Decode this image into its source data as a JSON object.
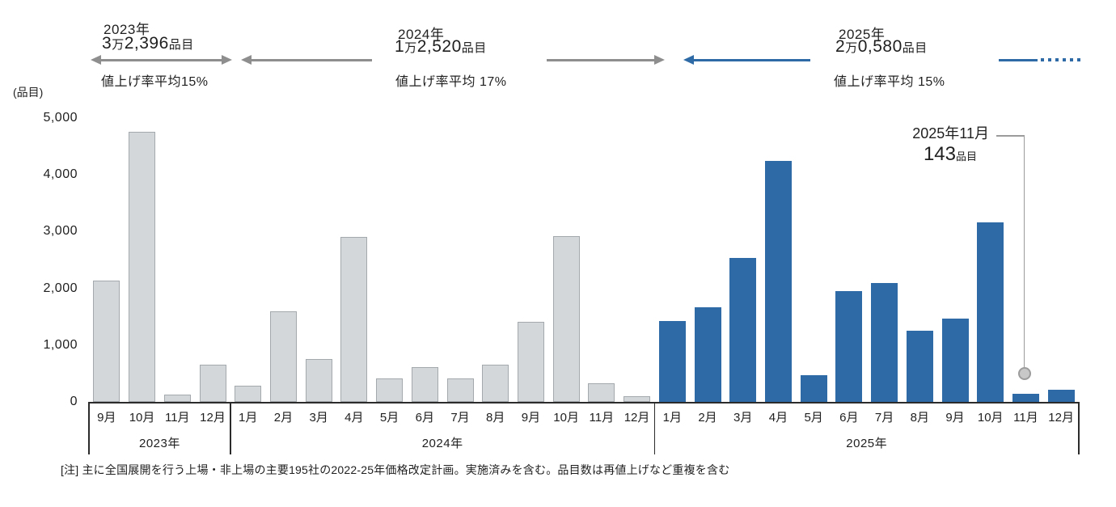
{
  "unit_label": "(品目)",
  "annotations": [
    {
      "year_label": "2023年",
      "num1": "3",
      "man": "万",
      "num2": "2,396",
      "unit": "品目",
      "rate": "値上げ率平均15%"
    },
    {
      "year_label": "2024年",
      "num1": "1",
      "man": "万",
      "num2": "2,520",
      "unit": "品目",
      "rate": "値上げ率平均 17%"
    },
    {
      "year_label": "2025年",
      "num1": "2",
      "man": "万",
      "num2": "0,580",
      "unit": "品目",
      "rate": "値上げ率平均 15%"
    }
  ],
  "callout": {
    "title": "2025年11月",
    "value": "143",
    "unit": "品目"
  },
  "note": "[注] 主に全国展開を行う上場・非上場の主要195社の2022-25年価格改定計画。実施済みを含む。品目数は再値上げなど重複を含む",
  "colors": {
    "gray_bar": "#d3d7da",
    "gray_bar_border": "#a4a9ad",
    "blue_bar": "#2e6ba6",
    "gray_arrow": "#8e8e8e",
    "blue_arrow": "#2e6ba6",
    "axis": "#2b2b2b",
    "callout_line": "#9b9b9b"
  },
  "chart_data": {
    "type": "bar",
    "title": "",
    "xlabel": "",
    "ylabel": "(品目)",
    "ylim": [
      0,
      5000
    ],
    "grid": false,
    "legend": "none",
    "yticks": [
      "5,000",
      "4,000",
      "3,000",
      "2,000",
      "1,000",
      "0"
    ],
    "groups": [
      {
        "year": "2023年",
        "color": "#d3d7da",
        "border": "#a4a9ad",
        "months": [
          "9月",
          "10月",
          "11月",
          "12月"
        ],
        "values": [
          2130,
          4760,
          130,
          660
        ]
      },
      {
        "year": "2024年",
        "color": "#d3d7da",
        "border": "#a4a9ad",
        "months": [
          "1月",
          "2月",
          "3月",
          "4月",
          "5月",
          "6月",
          "7月",
          "8月",
          "9月",
          "10月",
          "11月",
          "12月"
        ],
        "values": [
          280,
          1600,
          760,
          2900,
          410,
          610,
          410,
          660,
          1410,
          2920,
          330,
          100
        ]
      },
      {
        "year": "2025年",
        "color": "#2e6ba6",
        "border": null,
        "months": [
          "1月",
          "2月",
          "3月",
          "4月",
          "5月",
          "6月",
          "7月",
          "8月",
          "9月",
          "10月",
          "11月",
          "12月"
        ],
        "values": [
          1420,
          1660,
          2530,
          4250,
          470,
          1950,
          2100,
          1260,
          1470,
          3160,
          143,
          210
        ]
      }
    ],
    "annotated_point": {
      "group": "2025年",
      "month": "11月",
      "value": 143
    }
  }
}
